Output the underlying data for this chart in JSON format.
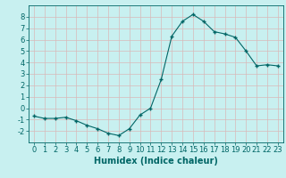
{
  "x": [
    0,
    1,
    2,
    3,
    4,
    5,
    6,
    7,
    8,
    9,
    10,
    11,
    12,
    13,
    14,
    15,
    16,
    17,
    18,
    19,
    20,
    21,
    22,
    23
  ],
  "y": [
    -0.7,
    -0.9,
    -0.9,
    -0.8,
    -1.1,
    -1.5,
    -1.8,
    -2.2,
    -2.4,
    -1.8,
    -0.6,
    0.0,
    2.5,
    6.3,
    7.6,
    8.2,
    7.6,
    6.7,
    6.5,
    6.2,
    5.0,
    3.7,
    3.8,
    3.7
  ],
  "line_color": "#006666",
  "marker": "+",
  "marker_size": 3,
  "marker_lw": 1.0,
  "bg_color": "#c8f0f0",
  "grid_color": "#e8e8e8",
  "xlabel": "Humidex (Indice chaleur)",
  "ylim": [
    -3,
    9
  ],
  "xlim": [
    -0.5,
    23.5
  ],
  "yticks": [
    -2,
    -1,
    0,
    1,
    2,
    3,
    4,
    5,
    6,
    7,
    8
  ],
  "xticks": [
    0,
    1,
    2,
    3,
    4,
    5,
    6,
    7,
    8,
    9,
    10,
    11,
    12,
    13,
    14,
    15,
    16,
    17,
    18,
    19,
    20,
    21,
    22,
    23
  ],
  "xlabel_fontsize": 7,
  "tick_fontsize": 6,
  "axis_color": "#006666",
  "spine_color": "#006666"
}
